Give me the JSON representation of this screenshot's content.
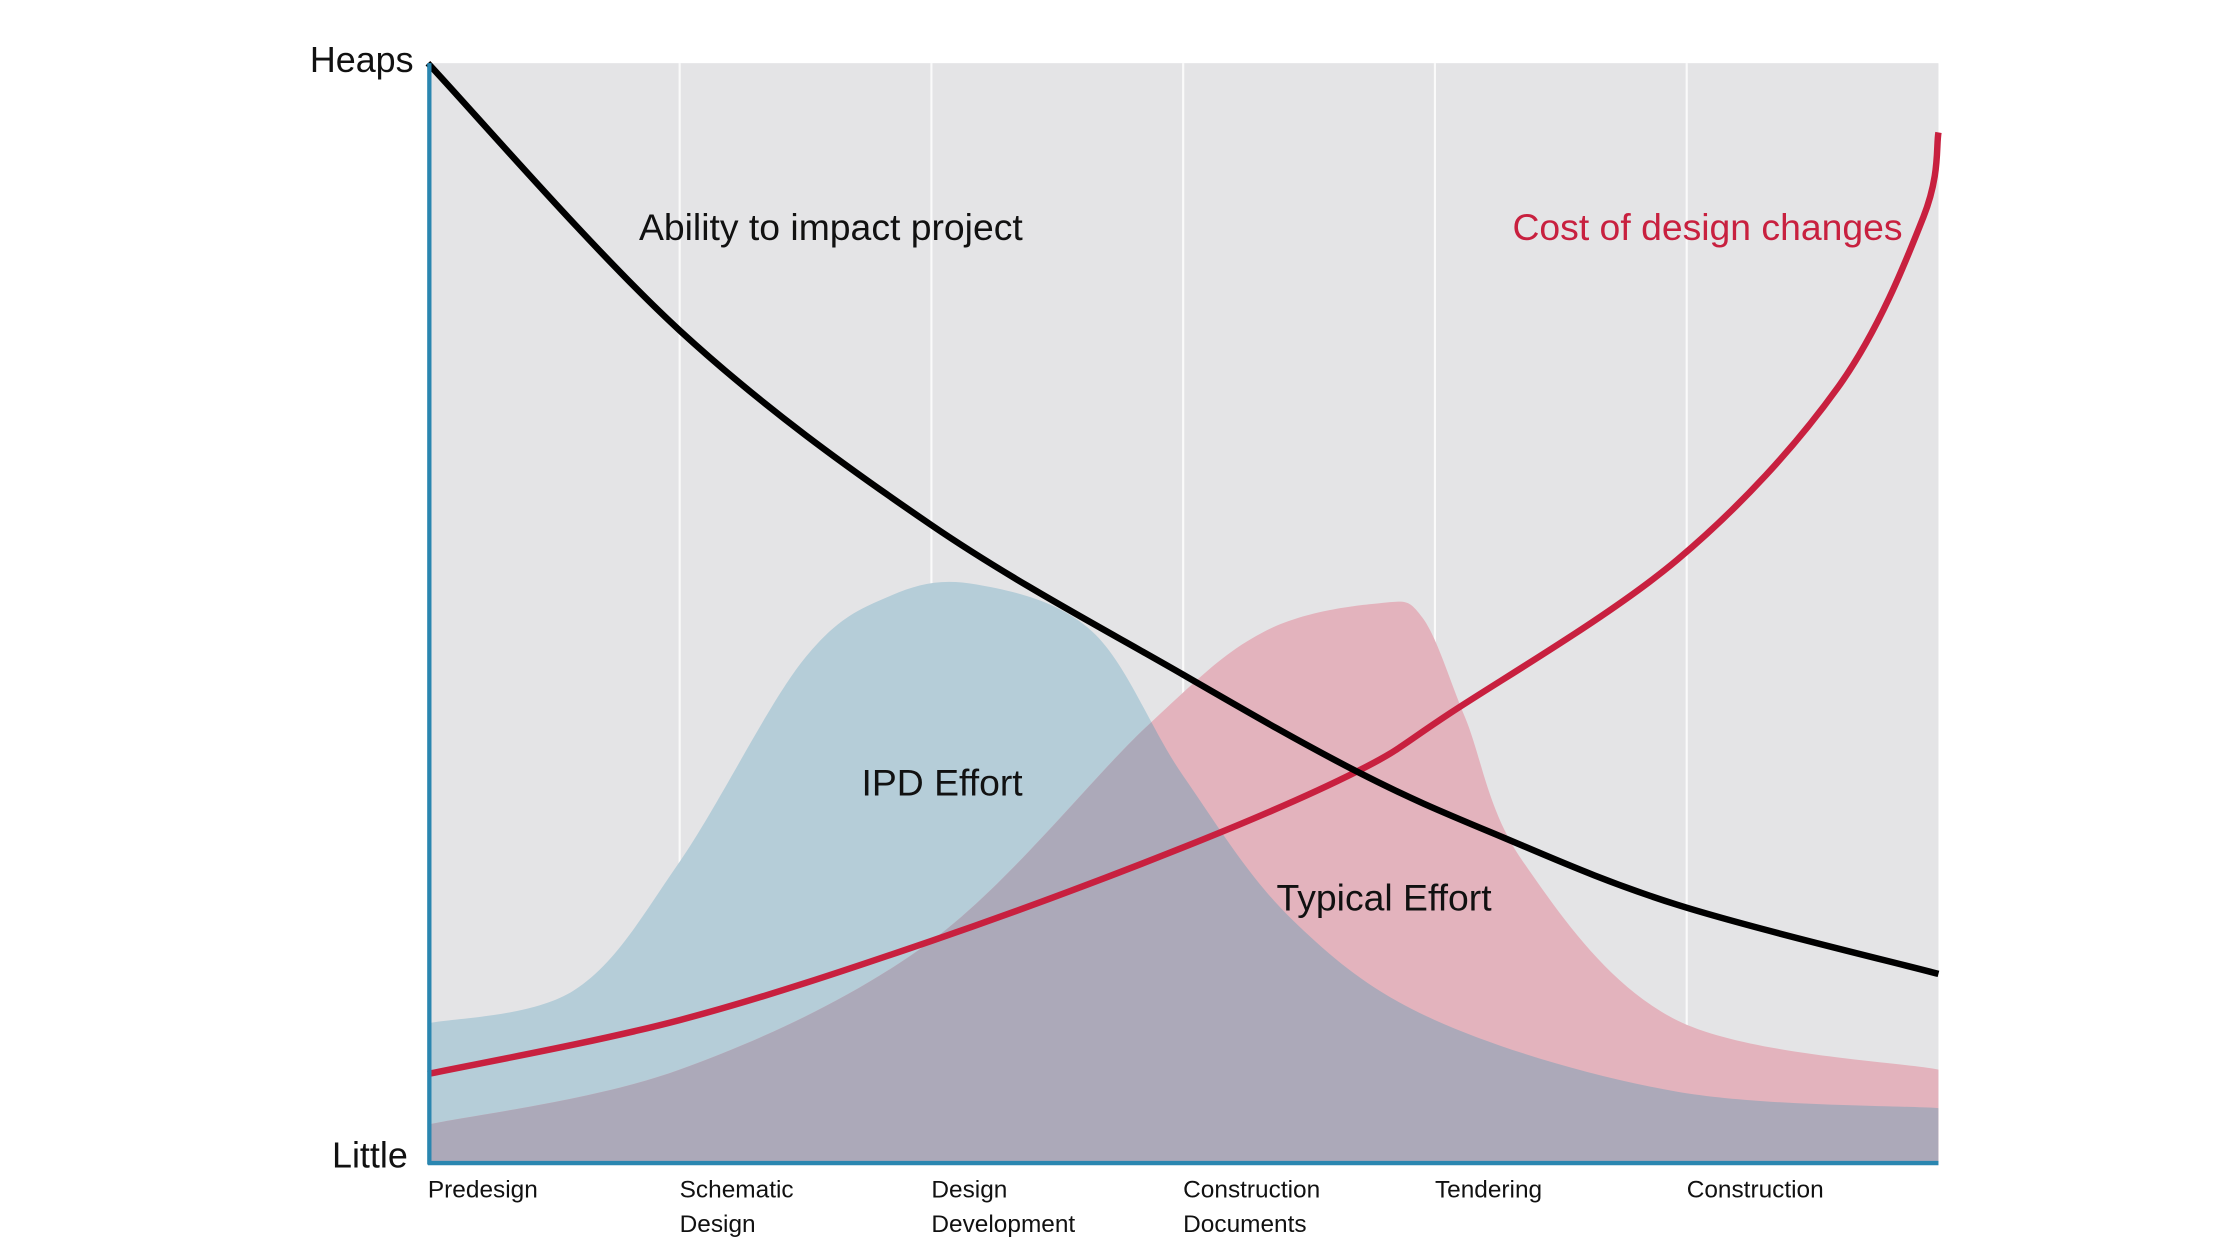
{
  "chart_data": {
    "type": "line",
    "title": "",
    "xlabel": "",
    "ylabel": "",
    "y_tick_labels": {
      "top": "Heaps",
      "bottom": "Little"
    },
    "ylim": [
      0,
      100
    ],
    "xlim": [
      0,
      6
    ],
    "grid": "vertical",
    "categories": [
      {
        "line1": "Predesign",
        "line2": ""
      },
      {
        "line1": "Schematic",
        "line2": "Design"
      },
      {
        "line1": "Design",
        "line2": "Development"
      },
      {
        "line1": "Construction",
        "line2": "Documents"
      },
      {
        "line1": "Tendering",
        "line2": ""
      },
      {
        "line1": "Construction",
        "line2": ""
      }
    ],
    "series": [
      {
        "name": "Ability to impact project",
        "kind": "line",
        "color": "#000000",
        "x": [
          0,
          1,
          2,
          3,
          3.69,
          4.23,
          4.96,
          6
        ],
        "y": [
          100,
          75.7,
          58,
          44.4,
          35.6,
          30,
          23.5,
          17.2
        ]
      },
      {
        "name": "Cost of design changes",
        "kind": "line",
        "color": "#c8203f",
        "x": [
          0,
          1,
          2,
          3,
          3.69,
          4.06,
          4.96,
          5.6,
          5.94,
          6
        ],
        "y": [
          8.1,
          13,
          20.2,
          28.7,
          35.6,
          40.9,
          54.8,
          70.5,
          86,
          93.7
        ]
      },
      {
        "name": "IPD Effort",
        "kind": "area",
        "color": "#b5cdd8",
        "x": [
          0,
          0.58,
          1,
          1.49,
          1.84,
          2.18,
          2.64,
          3,
          3.43,
          4,
          4.96,
          6
        ],
        "y": [
          12.7,
          15.7,
          27.4,
          45.7,
          51.6,
          52.6,
          48.3,
          35.2,
          22.2,
          13,
          6.5,
          5
        ]
      },
      {
        "name": "Typical Effort",
        "kind": "area",
        "color": "#e3b3bd",
        "x": [
          0,
          1,
          2,
          2.86,
          3.32,
          3.78,
          3.95,
          4.12,
          4.35,
          4.96,
          6
        ],
        "y": [
          3.5,
          8.5,
          20.2,
          39.8,
          48.3,
          50.9,
          49.6,
          40.5,
          27.4,
          13,
          8.5
        ]
      }
    ],
    "colors": {
      "plot_bg": "#e4e4e6",
      "axis": "#2a86b0",
      "overlap": "#aca9b9",
      "cost_label": "#c8203f"
    }
  }
}
